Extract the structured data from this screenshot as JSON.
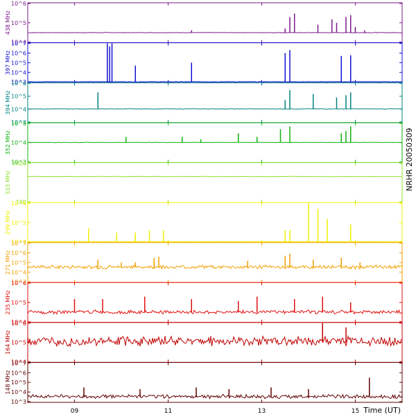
{
  "chart_data": [
    {
      "type": "line",
      "series": [
        {
          "name": "438 MHz"
        }
      ],
      "ylabel": "438 MHz",
      "color": "#7a1a8a",
      "ylim_log10": [
        4,
        6
      ],
      "ytick_labels": [
        "10^4",
        "10^5",
        "10^6"
      ],
      "baseline": 30000,
      "x": [
        11.5,
        13.5,
        13.6,
        13.7,
        14.2,
        14.5,
        14.6,
        14.8,
        14.9,
        15.0,
        15.2
      ],
      "peaks": [
        40000,
        50000,
        200000,
        300000,
        80000,
        150000,
        100000,
        200000,
        250000,
        60000,
        40000
      ]
    },
    {
      "type": "line",
      "series": [
        {
          "name": "397 MHz"
        }
      ],
      "ylabel": "397 MHz",
      "color": "#1010d0",
      "ylim_log10": [
        3,
        7
      ],
      "ytick_labels": [
        "10^3",
        "10^4",
        "10^5",
        "10^6",
        "10^7"
      ],
      "baseline": 1000,
      "x": [
        9.7,
        9.75,
        9.8,
        10.3,
        11.5,
        13.5,
        13.6,
        14.7,
        14.9
      ],
      "peaks": [
        10000000,
        5000000,
        10000000,
        50000,
        100000,
        1000000,
        2000000,
        500000,
        600000
      ]
    },
    {
      "type": "line",
      "series": [
        {
          "name": "394 MHz"
        }
      ],
      "ylabel": "394 MHz",
      "color": "#008080",
      "ylim_log10": [
        3,
        6
      ],
      "ytick_labels": [
        "10^3",
        "10^4",
        "10^5",
        "10^6"
      ],
      "baseline": 10000,
      "x": [
        9.5,
        13.5,
        13.6,
        14.1,
        14.6,
        14.8,
        14.9
      ],
      "peaks": [
        200000,
        50000,
        300000,
        150000,
        80000,
        120000,
        200000
      ]
    },
    {
      "type": "line",
      "series": [
        {
          "name": "352 MHz"
        }
      ],
      "ylabel": "352 MHz",
      "color": "#10b010",
      "ylim_log10": [
        3,
        5
      ],
      "ytick_labels": [
        "10^3",
        "10^4",
        "10^5"
      ],
      "baseline": 10000,
      "x": [
        10.1,
        11.3,
        11.7,
        12.5,
        12.9,
        13.4,
        13.6,
        14.7,
        14.8,
        14.9
      ],
      "peaks": [
        20000,
        20000,
        15000,
        30000,
        20000,
        50000,
        70000,
        30000,
        40000,
        70000
      ]
    },
    {
      "type": "line",
      "series": [
        {
          "name": "333 MHz"
        }
      ],
      "ylabel": "333 MHz",
      "color": "#90e030",
      "ylim_log10": [
        1.5,
        3
      ],
      "ytick_labels": [
        "100",
        "1000"
      ],
      "baseline": 300,
      "x": [],
      "peaks": []
    },
    {
      "type": "line",
      "series": [
        {
          "name": "299 MHz"
        }
      ],
      "ylabel": "299 MHz",
      "color": "#f0f000",
      "ylim_log10": [
        4,
        6
      ],
      "ytick_labels": [
        "10^4",
        "10^5",
        "10^6"
      ],
      "baseline": 10000,
      "x": [
        9.3,
        9.9,
        10.3,
        10.6,
        10.9,
        13.5,
        13.6,
        14.0,
        14.2,
        14.4,
        14.9
      ],
      "peaks": [
        50000,
        30000,
        30000,
        40000,
        40000,
        40000,
        40000,
        1000000,
        500000,
        150000,
        80000
      ]
    },
    {
      "type": "line",
      "series": [
        {
          "name": "271 MHz"
        }
      ],
      "ylabel": "271 MHz",
      "color": "#f0a000",
      "ylim_log10": [
        3,
        7
      ],
      "ytick_labels": [
        "10^3",
        "10^4",
        "10^5",
        "10^6",
        "10^7"
      ],
      "baseline": 30000,
      "x": [
        9.5,
        10.0,
        10.3,
        10.7,
        10.8,
        12.7,
        13.5,
        13.6,
        14.1,
        14.7,
        15.1
      ],
      "peaks": [
        200000,
        100000,
        100000,
        300000,
        400000,
        150000,
        500000,
        800000,
        200000,
        300000,
        100000
      ]
    },
    {
      "type": "line",
      "series": [
        {
          "name": "235 MHz"
        }
      ],
      "ylabel": "235 MHz",
      "color": "#e01010",
      "ylim_log10": [
        4,
        6
      ],
      "ytick_labels": [
        "10^4",
        "10^5",
        "10^6"
      ],
      "baseline": 30000,
      "x": [
        9.0,
        9.6,
        10.5,
        11.5,
        12.5,
        12.9,
        13.7,
        14.3,
        14.9
      ],
      "peaks": [
        150000,
        150000,
        200000,
        150000,
        120000,
        200000,
        150000,
        200000,
        100000
      ]
    },
    {
      "type": "line",
      "series": [
        {
          "name": "164 MHz"
        }
      ],
      "ylabel": "164 MHz",
      "color": "#c00000",
      "ylim_log10": [
        4,
        6
      ],
      "ytick_labels": [
        "10^4",
        "10^5",
        "10^6"
      ],
      "baseline": 100000,
      "x": [
        14.3,
        14.8
      ],
      "peaks": [
        1500000,
        600000
      ]
    },
    {
      "type": "line",
      "series": [
        {
          "name": "148 MHz"
        }
      ],
      "ylabel": "148 MHz",
      "color": "#600000",
      "ylim_log10": [
        3,
        7
      ],
      "ytick_labels": [
        "10^3",
        "10^4",
        "10^5",
        "10^6",
        "10^7"
      ],
      "baseline": 3000,
      "x": [
        9.2,
        10.4,
        11.6,
        12.3,
        13.2,
        14.0,
        15.3
      ],
      "peaks": [
        30000,
        20000,
        30000,
        20000,
        30000,
        20000,
        300000
      ]
    }
  ],
  "xaxis": {
    "label": "Time (UT)",
    "ticks": [
      "09",
      "11",
      "13",
      "15"
    ],
    "tick_values": [
      9,
      11,
      13,
      15
    ],
    "xlim": [
      8.0,
      16.0
    ]
  },
  "side_label": "NRHR 20050309"
}
